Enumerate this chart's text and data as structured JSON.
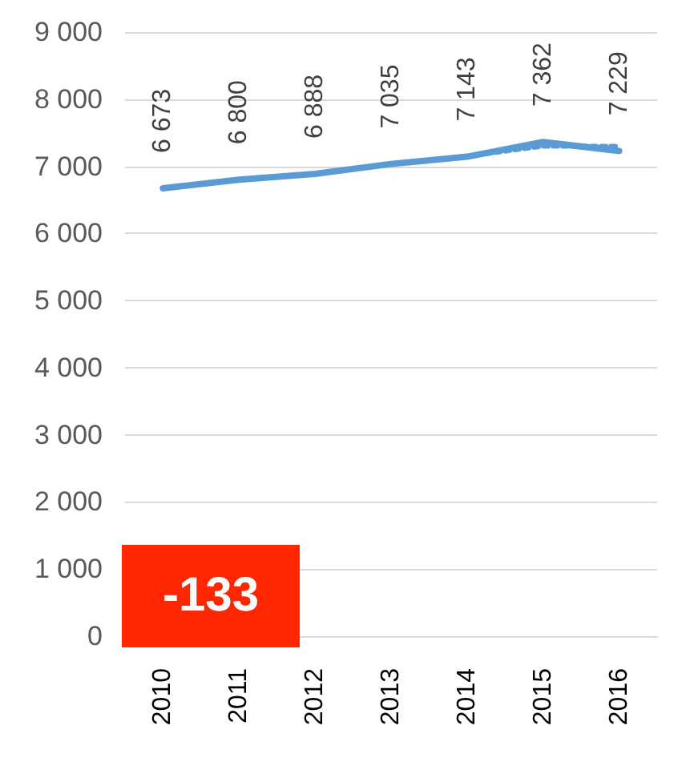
{
  "chart_data": {
    "type": "line",
    "categories": [
      "2010",
      "2011",
      "2012",
      "2013",
      "2014",
      "2015",
      "2016"
    ],
    "series": [
      {
        "color": "#5b9bd5",
        "values": [
          6673,
          6800,
          6888,
          7035,
          7143,
          7362,
          7229
        ],
        "value_labels": [
          "6 673",
          "6 800",
          "6 888",
          "7 035",
          "7 143",
          "7 362",
          "7 229"
        ],
        "line_style": "solid"
      },
      {
        "color": "#5b9bd5",
        "values": [
          null,
          null,
          null,
          null,
          7150,
          7300,
          7300
        ],
        "line_style": "dotted"
      }
    ],
    "ylim": [
      0,
      9000
    ],
    "yticks": [
      {
        "value": 0,
        "label": "0"
      },
      {
        "value": 1000,
        "label": "1 000"
      },
      {
        "value": 2000,
        "label": "2 000"
      },
      {
        "value": 3000,
        "label": "3 000"
      },
      {
        "value": 4000,
        "label": "4 000"
      },
      {
        "value": 5000,
        "label": "5 000"
      },
      {
        "value": 6000,
        "label": "6 000"
      },
      {
        "value": 7000,
        "label": "7 000"
      },
      {
        "value": 8000,
        "label": "8 000"
      },
      {
        "value": 9000,
        "label": "9 000"
      }
    ],
    "grid": "y",
    "marker": "none",
    "annotations": [
      "-133"
    ]
  }
}
